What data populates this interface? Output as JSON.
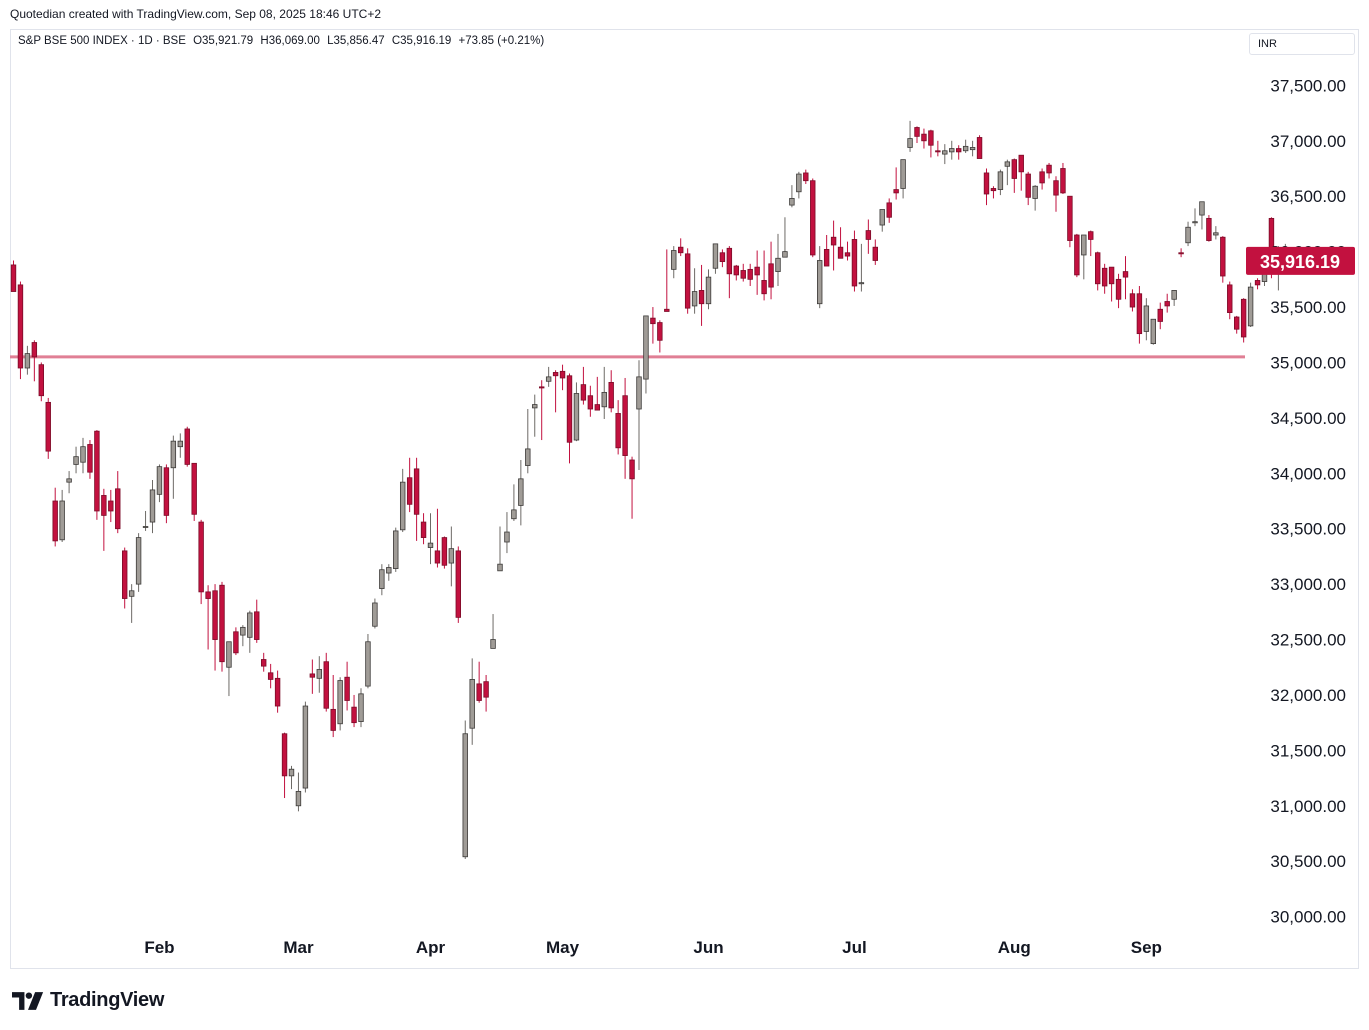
{
  "header": {
    "credit": "Quotedian created with TradingView.com, Sep 08, 2025 18:46 UTC+2"
  },
  "legend": {
    "symbol": "S&P BSE 500 INDEX · 1D · BSE",
    "open": "O35,921.79",
    "high": "H36,069.00",
    "low": "L35,856.47",
    "close": "C35,916.19",
    "change": "+73.85 (+0.21%)"
  },
  "currency_label": "INR",
  "logo_text": "TradingView",
  "colors": {
    "up": "#a09c97",
    "down": "#c2113f",
    "support": "#e07f95",
    "price_tag": "#c2113f"
  },
  "chart_data": {
    "type": "candlestick",
    "y_range": [
      29780,
      37720
    ],
    "y_ticks": [
      30000,
      30500,
      31000,
      31500,
      32000,
      32500,
      33000,
      33500,
      34000,
      34500,
      35000,
      35500,
      36000,
      36500,
      37000,
      37500
    ],
    "y_tick_labels": [
      "30,000.00",
      "30,500.00",
      "31,000.00",
      "31,500.00",
      "32,000.00",
      "32,500.00",
      "33,000.00",
      "33,500.00",
      "34,000.00",
      "34,500.00",
      "35,000.00",
      "35,500.00",
      "36,000.00",
      "36,500.00",
      "37,000.00",
      "37,500.00"
    ],
    "x_tick_labels": [
      {
        "label": "Feb",
        "index": 21
      },
      {
        "label": "Mar",
        "index": 41
      },
      {
        "label": "Apr",
        "index": 60
      },
      {
        "label": "May",
        "index": 79
      },
      {
        "label": "Jun",
        "index": 100
      },
      {
        "label": "Jul",
        "index": 121
      },
      {
        "label": "Aug",
        "index": 144
      },
      {
        "label": "Sep",
        "index": 163
      }
    ],
    "support_level": 35050,
    "last_price": 35916.19,
    "last_price_label": "35,916.19",
    "candles": [
      [
        35880,
        35920,
        35640,
        35640
      ],
      [
        35700,
        35730,
        34850,
        34950
      ],
      [
        34950,
        35150,
        34890,
        35080
      ],
      [
        35180,
        35200,
        34830,
        35050
      ],
      [
        34980,
        35000,
        34650,
        34700
      ],
      [
        34640,
        34680,
        34130,
        34200
      ],
      [
        33750,
        33870,
        33340,
        33390
      ],
      [
        33400,
        33850,
        33380,
        33750
      ],
      [
        33920,
        34020,
        33820,
        33950
      ],
      [
        34080,
        34240,
        34000,
        34150
      ],
      [
        34100,
        34320,
        34000,
        34240
      ],
      [
        34260,
        34300,
        33950,
        34010
      ],
      [
        34380,
        34390,
        33580,
        33660
      ],
      [
        33800,
        33860,
        33300,
        33620
      ],
      [
        33750,
        33850,
        33560,
        33660
      ],
      [
        33860,
        34020,
        33460,
        33500
      ],
      [
        33300,
        33330,
        32780,
        32870
      ],
      [
        32890,
        33000,
        32650,
        32940
      ],
      [
        33000,
        33460,
        32930,
        33420
      ],
      [
        33520,
        33660,
        33480,
        33520
      ],
      [
        33560,
        33940,
        33460,
        33850
      ],
      [
        33810,
        34080,
        33740,
        34060
      ],
      [
        34050,
        34080,
        33550,
        33620
      ],
      [
        34050,
        34340,
        33770,
        34290
      ],
      [
        34240,
        34360,
        34140,
        34290
      ],
      [
        34400,
        34420,
        34060,
        34080
      ],
      [
        34090,
        34090,
        33570,
        33630
      ],
      [
        33560,
        33580,
        32820,
        32930
      ],
      [
        32930,
        32990,
        32410,
        32870
      ],
      [
        32940,
        33000,
        32220,
        32500
      ],
      [
        32990,
        33020,
        32210,
        32300
      ],
      [
        32250,
        32470,
        31990,
        32480
      ],
      [
        32570,
        32610,
        32360,
        32380
      ],
      [
        32540,
        32630,
        32440,
        32610
      ],
      [
        32520,
        32760,
        32380,
        32740
      ],
      [
        32750,
        32860,
        32470,
        32500
      ],
      [
        32320,
        32380,
        32210,
        32260
      ],
      [
        32200,
        32280,
        32060,
        32140
      ],
      [
        32150,
        32220,
        31840,
        31900
      ],
      [
        31650,
        31660,
        31070,
        31270
      ],
      [
        31270,
        31360,
        31150,
        31330
      ],
      [
        31000,
        31300,
        30950,
        31130
      ],
      [
        31160,
        31940,
        31120,
        31900
      ],
      [
        32190,
        32320,
        32010,
        32160
      ],
      [
        32150,
        32350,
        32020,
        32230
      ],
      [
        32300,
        32380,
        31850,
        31880
      ],
      [
        31870,
        32180,
        31620,
        31680
      ],
      [
        31740,
        32160,
        31680,
        32130
      ],
      [
        32160,
        32300,
        31860,
        31950
      ],
      [
        31890,
        32000,
        31710,
        31750
      ],
      [
        31760,
        32060,
        31710,
        32010
      ],
      [
        32080,
        32550,
        32060,
        32480
      ],
      [
        32620,
        32870,
        32600,
        32830
      ],
      [
        32960,
        33180,
        32900,
        33130
      ],
      [
        33100,
        33180,
        33030,
        33150
      ],
      [
        33140,
        33510,
        33110,
        33480
      ],
      [
        33490,
        34040,
        33470,
        33920
      ],
      [
        33960,
        34140,
        33650,
        33720
      ],
      [
        34040,
        34140,
        33390,
        33630
      ],
      [
        33560,
        33640,
        33360,
        33420
      ],
      [
        33330,
        33640,
        33180,
        33370
      ],
      [
        33300,
        33680,
        33150,
        33190
      ],
      [
        33420,
        33430,
        33140,
        33170
      ],
      [
        33190,
        33520,
        32980,
        33320
      ],
      [
        33300,
        33340,
        32650,
        32700
      ],
      [
        30540,
        31770,
        30520,
        31650
      ],
      [
        31700,
        32330,
        31550,
        32140
      ],
      [
        32100,
        32300,
        31930,
        31950
      ],
      [
        32120,
        32180,
        31850,
        31980
      ],
      [
        32420,
        32730,
        32430,
        32500
      ],
      [
        33120,
        33520,
        33120,
        33180
      ],
      [
        33380,
        33650,
        33280,
        33470
      ],
      [
        33590,
        33900,
        33570,
        33670
      ],
      [
        33710,
        34120,
        33530,
        33950
      ],
      [
        34070,
        34580,
        34000,
        34220
      ],
      [
        34590,
        34710,
        34330,
        34620
      ],
      [
        34780,
        34840,
        34300,
        34770
      ],
      [
        34830,
        34960,
        34780,
        34870
      ],
      [
        34910,
        34930,
        34550,
        34880
      ],
      [
        34920,
        34980,
        34750,
        34860
      ],
      [
        34880,
        34900,
        34090,
        34280
      ],
      [
        34300,
        34820,
        34290,
        34720
      ],
      [
        34800,
        34960,
        34620,
        34660
      ],
      [
        34700,
        34790,
        34510,
        34580
      ],
      [
        34620,
        34870,
        34570,
        34570
      ],
      [
        34600,
        34960,
        34490,
        34730
      ],
      [
        34820,
        34930,
        34550,
        34590
      ],
      [
        34540,
        34660,
        34170,
        34230
      ],
      [
        34700,
        34860,
        33950,
        34160
      ],
      [
        34120,
        34150,
        33590,
        33950
      ],
      [
        34580,
        35020,
        34030,
        34870
      ],
      [
        34850,
        35400,
        34720,
        35420
      ],
      [
        35400,
        35500,
        35170,
        35350
      ],
      [
        35360,
        35380,
        35090,
        35200
      ],
      [
        35480,
        36020,
        35460,
        35460
      ],
      [
        35840,
        36050,
        35760,
        36010
      ],
      [
        36040,
        36120,
        35960,
        35990
      ],
      [
        35980,
        36030,
        35440,
        35490
      ],
      [
        35510,
        35850,
        35440,
        35640
      ],
      [
        35650,
        35880,
        35330,
        35530
      ],
      [
        35530,
        35840,
        35480,
        35770
      ],
      [
        35850,
        36070,
        35800,
        36070
      ],
      [
        35990,
        36020,
        35860,
        35910
      ],
      [
        36030,
        36050,
        35580,
        35800
      ],
      [
        35870,
        35880,
        35740,
        35790
      ],
      [
        35830,
        35890,
        35730,
        35760
      ],
      [
        35840,
        35890,
        35690,
        35750
      ],
      [
        35860,
        36010,
        35610,
        35790
      ],
      [
        35740,
        36010,
        35560,
        35620
      ],
      [
        35890,
        36090,
        35570,
        35680
      ],
      [
        35820,
        36160,
        35690,
        35940
      ],
      [
        35950,
        36310,
        35980,
        36000
      ],
      [
        36420,
        36600,
        36400,
        36480
      ],
      [
        36540,
        36720,
        36480,
        36700
      ],
      [
        36710,
        36740,
        36610,
        36640
      ],
      [
        36640,
        36660,
        35950,
        35970
      ],
      [
        35530,
        36050,
        35490,
        35920
      ],
      [
        36020,
        36150,
        35870,
        35870
      ],
      [
        36130,
        36280,
        35830,
        36060
      ],
      [
        36040,
        36220,
        35960,
        35940
      ],
      [
        35990,
        36090,
        35920,
        35960
      ],
      [
        36110,
        36190,
        35640,
        35690
      ],
      [
        35710,
        36070,
        35640,
        35720
      ],
      [
        36190,
        36290,
        35980,
        36110
      ],
      [
        36040,
        36110,
        35880,
        35920
      ],
      [
        36240,
        36330,
        36180,
        36380
      ],
      [
        36440,
        36480,
        36260,
        36310
      ],
      [
        36560,
        36760,
        36470,
        36530
      ],
      [
        36570,
        36820,
        36480,
        36830
      ],
      [
        36940,
        37180,
        36900,
        37020
      ],
      [
        37120,
        37130,
        36980,
        37040
      ],
      [
        37060,
        37110,
        36930,
        37000
      ],
      [
        37090,
        37100,
        36850,
        36960
      ],
      [
        36910,
        37000,
        36860,
        36900
      ],
      [
        36880,
        36970,
        36790,
        36910
      ],
      [
        36900,
        37000,
        36830,
        36930
      ],
      [
        36930,
        36960,
        36830,
        36900
      ],
      [
        36910,
        37010,
        36890,
        36950
      ],
      [
        36920,
        37000,
        36860,
        36940
      ],
      [
        37030,
        37050,
        36840,
        36840
      ],
      [
        36710,
        36750,
        36420,
        36520
      ],
      [
        36570,
        36590,
        36480,
        36550
      ],
      [
        36560,
        36740,
        36510,
        36720
      ],
      [
        36770,
        36830,
        36600,
        36810
      ],
      [
        36830,
        36840,
        36530,
        36660
      ],
      [
        36870,
        36870,
        36550,
        36720
      ],
      [
        36700,
        36720,
        36420,
        36490
      ],
      [
        36480,
        36600,
        36370,
        36590
      ],
      [
        36720,
        36750,
        36560,
        36620
      ],
      [
        36780,
        36800,
        36660,
        36710
      ],
      [
        36640,
        36680,
        36360,
        36510
      ],
      [
        36750,
        36800,
        36520,
        36530
      ],
      [
        36500,
        36500,
        36040,
        36100
      ],
      [
        36150,
        36160,
        35770,
        35790
      ],
      [
        35970,
        36140,
        35750,
        36150
      ],
      [
        36180,
        36190,
        35960,
        36110
      ],
      [
        35990,
        36000,
        35650,
        35710
      ],
      [
        35850,
        35890,
        35620,
        35690
      ],
      [
        35860,
        35860,
        35550,
        35710
      ],
      [
        35750,
        35800,
        35490,
        35570
      ],
      [
        35820,
        35960,
        35570,
        35770
      ],
      [
        35620,
        35660,
        35460,
        35500
      ],
      [
        35620,
        35690,
        35170,
        35260
      ],
      [
        35280,
        35580,
        35200,
        35510
      ],
      [
        35170,
        35350,
        35160,
        35390
      ],
      [
        35480,
        35540,
        35300,
        35370
      ],
      [
        35550,
        35620,
        35450,
        35510
      ],
      [
        35570,
        35650,
        35510,
        35650
      ],
      [
        35990,
        36030,
        35950,
        35980
      ],
      [
        36080,
        36270,
        36050,
        36220
      ],
      [
        36260,
        36390,
        36230,
        36270
      ],
      [
        36330,
        36450,
        36200,
        36450
      ],
      [
        36300,
        36330,
        36090,
        36100
      ],
      [
        36150,
        36230,
        36110,
        36170
      ],
      [
        36130,
        36140,
        35720,
        35780
      ],
      [
        35700,
        35730,
        35390,
        35450
      ],
      [
        35410,
        35420,
        35260,
        35300
      ],
      [
        35570,
        35580,
        35180,
        35230
      ],
      [
        35330,
        35720,
        35320,
        35680
      ],
      [
        35740,
        35760,
        35660,
        35700
      ],
      [
        35730,
        35940,
        35690,
        35930
      ],
      [
        36300,
        36310,
        35760,
        35810
      ],
      [
        35830,
        36050,
        35650,
        35970
      ],
      [
        35920,
        36070,
        35860,
        35920
      ]
    ]
  }
}
